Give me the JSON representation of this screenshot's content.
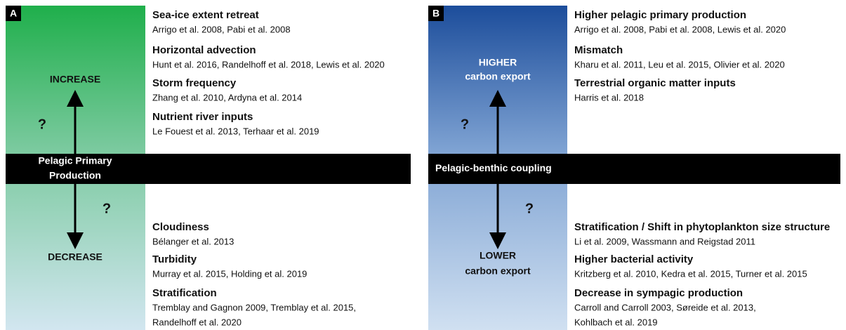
{
  "panels": [
    {
      "letter": "A",
      "bar_label": [
        "Pelagic Primary",
        "Production"
      ],
      "up_label": [
        "INCREASE"
      ],
      "down_label": [
        "DECREASE"
      ],
      "question_marks": [
        "?",
        "?"
      ],
      "drivers_up": [
        {
          "title": "Sea-ice extent retreat",
          "refs": [
            "Arrigo et al. 2008, Pabi et al. 2008"
          ]
        },
        {
          "title": "Horizontal advection",
          "refs": [
            "Hunt et al. 2016, Randelhoff et al. 2018, Lewis et al. 2020"
          ]
        },
        {
          "title": "Storm frequency",
          "refs": [
            "Zhang et al. 2010, Ardyna et al. 2014"
          ]
        },
        {
          "title": "Nutrient river inputs",
          "refs": [
            "Le Fouest et al. 2013, Terhaar et al. 2019"
          ]
        }
      ],
      "drivers_down": [
        {
          "title": "Cloudiness",
          "refs": [
            "Bélanger et al. 2013"
          ]
        },
        {
          "title": "Turbidity",
          "refs": [
            "Murray et al. 2015, Holding et al. 2019"
          ]
        },
        {
          "title": "Stratification",
          "refs": [
            "Tremblay and Gagnon 2009, Tremblay et al. 2015,",
            "Randelhoff et al. 2020"
          ]
        }
      ]
    },
    {
      "letter": "B",
      "bar_label": [
        "Pelagic-benthic coupling"
      ],
      "up_label": [
        "HIGHER",
        "carbon export"
      ],
      "down_label": [
        "LOWER",
        "carbon export"
      ],
      "question_marks": [
        "?",
        "?"
      ],
      "drivers_up": [
        {
          "title": "Higher pelagic primary production",
          "refs": [
            "Arrigo et al. 2008, Pabi et al. 2008, Lewis et al. 2020"
          ]
        },
        {
          "title": "Mismatch",
          "refs": [
            "Kharu et al. 2011, Leu et al. 2015, Olivier et al. 2020"
          ]
        },
        {
          "title": "Terrestrial organic matter inputs",
          "refs": [
            "Harris et al. 2018"
          ]
        }
      ],
      "drivers_down": [
        {
          "title": "Stratification / Shift in phytoplankton size structure",
          "refs": [
            "Li et al. 2009, Wassmann and Reigstad 2011"
          ]
        },
        {
          "title": "Higher bacterial activity",
          "refs": [
            "Kritzberg et al. 2010, Kedra et al. 2015, Turner et al. 2015"
          ]
        },
        {
          "title": "Decrease in sympagic production",
          "refs": [
            "Carroll and Carroll 2003, Søreide et al. 2013,",
            "Kohlbach et al. 2019"
          ]
        }
      ]
    }
  ]
}
